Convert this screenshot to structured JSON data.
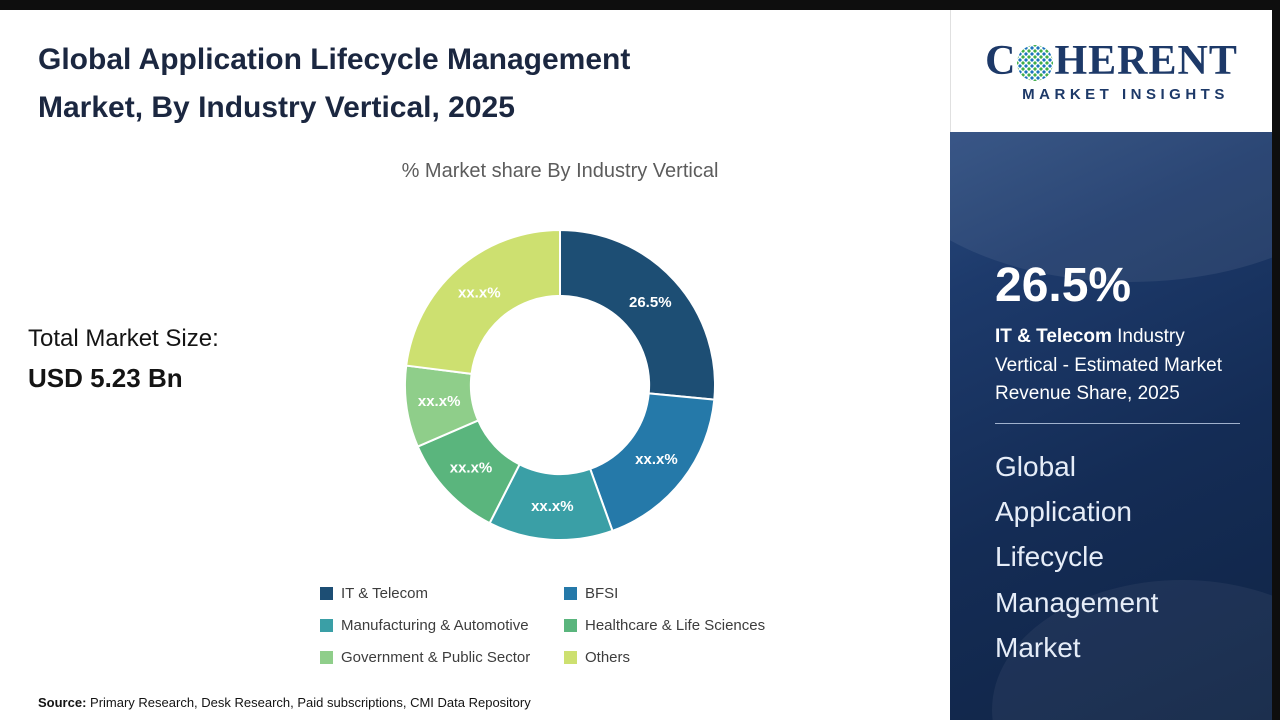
{
  "title": {
    "line1": "Global Application Lifecycle Management",
    "line2": "Market, By Industry Vertical, 2025"
  },
  "total_market": {
    "label": "Total Market Size:",
    "value": "USD 5.23 Bn"
  },
  "source": {
    "label": "Source:",
    "text": " Primary Research, Desk Research, Paid subscriptions, CMI Data Repository"
  },
  "logo": {
    "brand_c": "C",
    "brand_rest": "HERENT",
    "tagline": "MARKET INSIGHTS",
    "globe_icon_colors": [
      "#3fae49",
      "#1b75bb"
    ],
    "brand_color": "#1d3968"
  },
  "sidebar": {
    "highlight_value": "26.5%",
    "highlight_bold": "IT & Telecom",
    "highlight_text": " Industry Vertical - Estimated Market Revenue Share, 2025",
    "market_name_lines": [
      "Global",
      "Application",
      "Lifecycle",
      "Management",
      "Market"
    ]
  },
  "chart_data": {
    "type": "pie",
    "subtype": "donut",
    "title": "% Market share By Industry Vertical",
    "categories": [
      "IT & Telecom",
      "BFSI",
      "Manufacturing & Automotive",
      "Healthcare & Life Sciences",
      "Government & Public Sector",
      "Others"
    ],
    "values": [
      26.5,
      18.0,
      13.0,
      11.0,
      8.5,
      23.0
    ],
    "labels": [
      "26.5%",
      "xx.x%",
      "xx.x%",
      "xx.x%",
      "xx.x%",
      "xx.x%"
    ],
    "colors": [
      "#1d4e74",
      "#2579a9",
      "#3a9fa6",
      "#5ab57d",
      "#8fce8a",
      "#cde070"
    ],
    "start_angle_deg": 0,
    "direction": "clockwise",
    "inner_radius_ratio": 0.575,
    "legend_position": "bottom"
  }
}
